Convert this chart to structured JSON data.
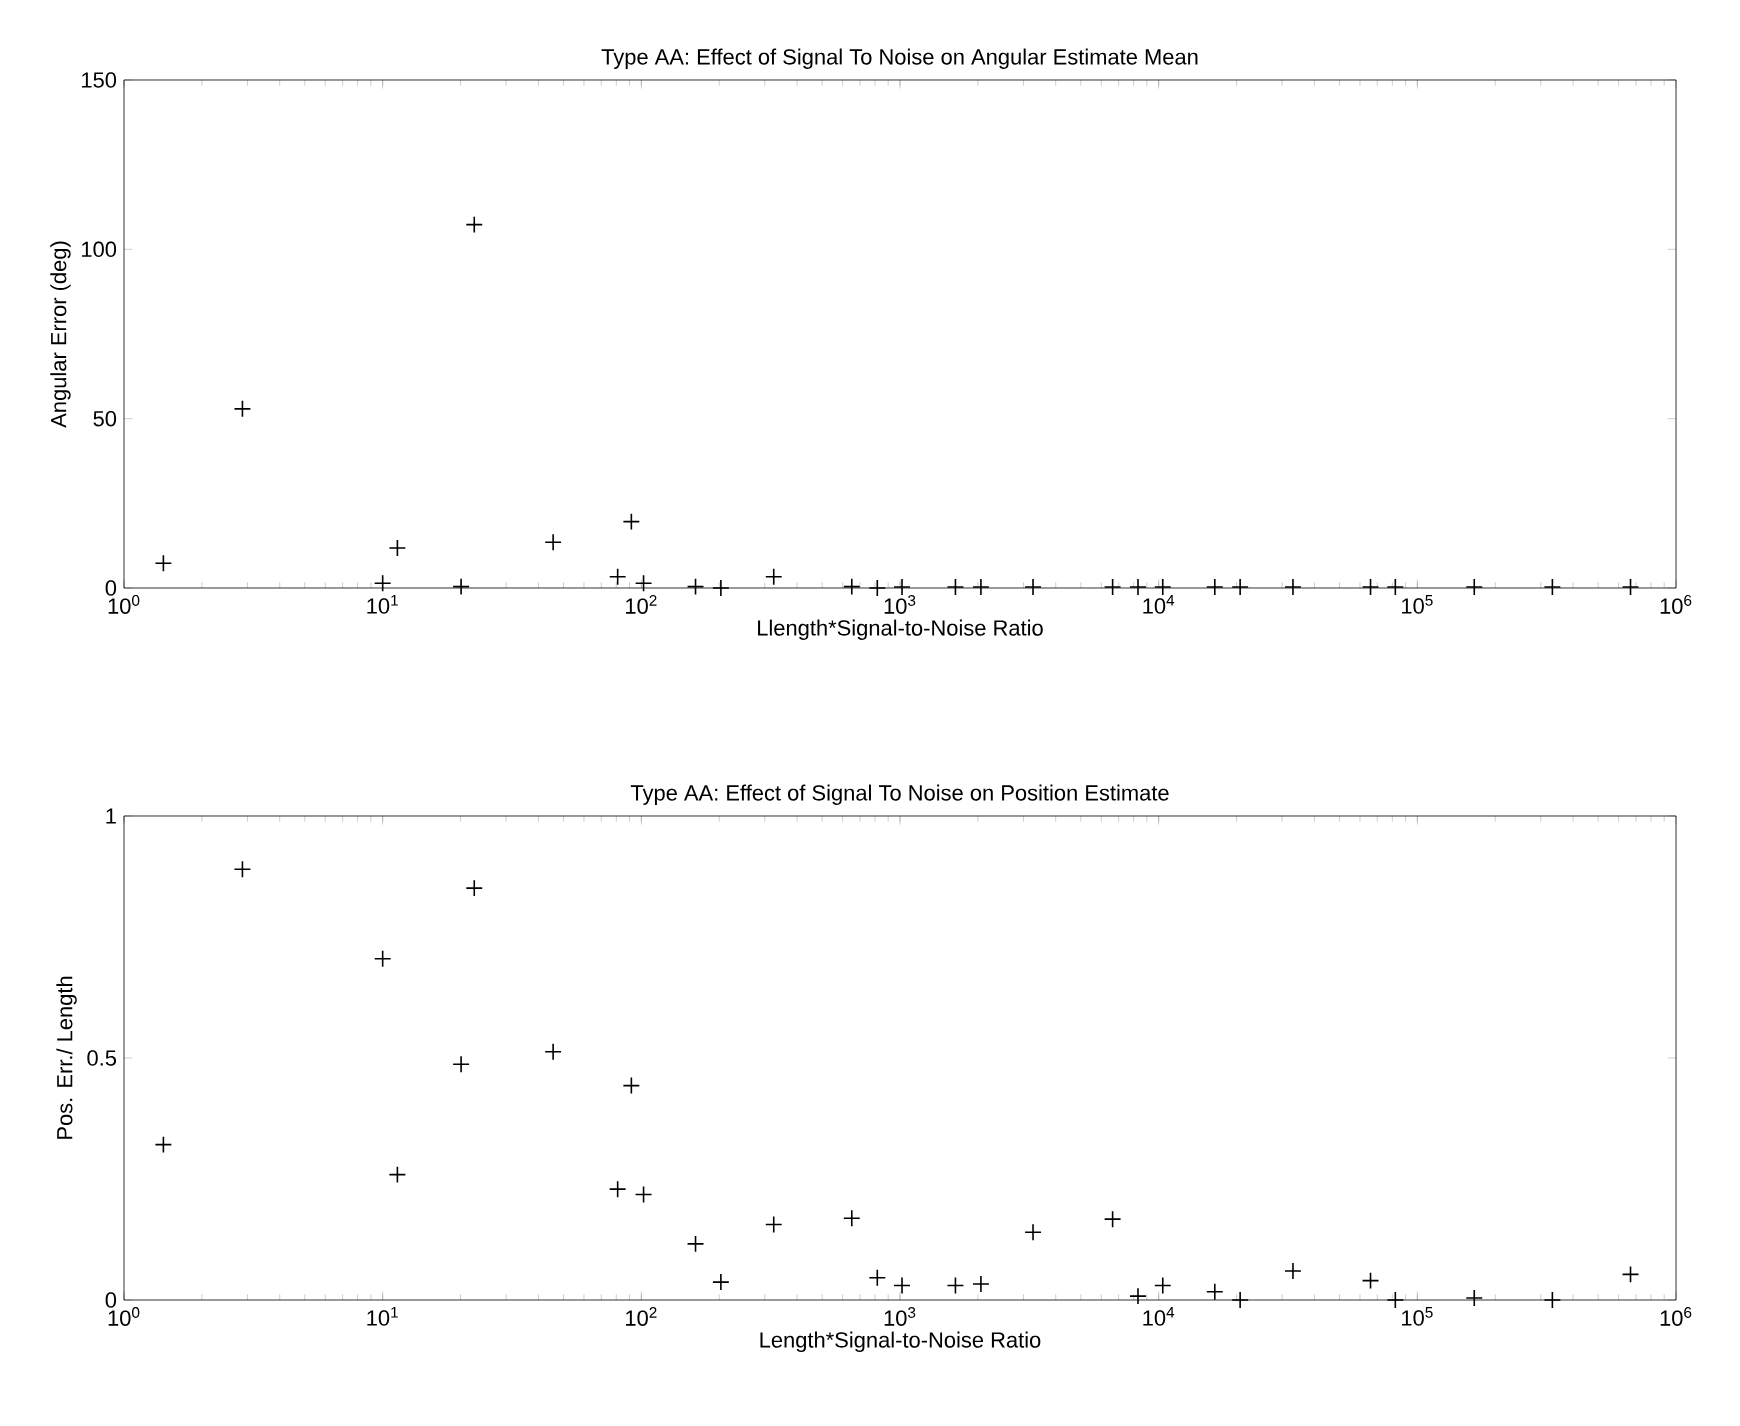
{
  "chart_data": [
    {
      "type": "scatter",
      "title": "Type AA: Effect of Signal To Noise on Angular Estimate Mean",
      "xlabel": "Llength*Signal-to-Noise Ratio",
      "ylabel": "Angular Error (deg)",
      "log": "x",
      "marker": "cross",
      "color": "#000000",
      "x": [
        1.42,
        2.87,
        10,
        11.4,
        20.1,
        22.6,
        45.6,
        81,
        91.5,
        102,
        162,
        203,
        325,
        651,
        817,
        1018,
        1638,
        2055,
        3268,
        6637,
        8318,
        10370,
        16480,
        20650,
        33050,
        65920,
        82200,
        166000,
        332700,
        667000
      ],
      "values": [
        7.3,
        52.9,
        1.4,
        11.8,
        0.4,
        107.3,
        13.5,
        3.3,
        19.6,
        1.4,
        0.4,
        0,
        3.3,
        0.4,
        0,
        0.3,
        0.3,
        0.3,
        0.3,
        0.3,
        0.3,
        0.3,
        0.3,
        0.3,
        0.3,
        0.3,
        0.3,
        0.3,
        0.3,
        0.3
      ],
      "xlim": [
        1,
        1000000
      ],
      "xticks": [
        {
          "value": 1,
          "label": "10$^{0}$"
        },
        {
          "value": 10,
          "label": "10$^{1}$"
        },
        {
          "value": 100,
          "label": "10$^{2}$"
        },
        {
          "value": 1000,
          "label": "10$^{3}$"
        },
        {
          "value": 10000,
          "label": "10$^{4}$"
        },
        {
          "value": 100000,
          "label": "10$^{5}$"
        },
        {
          "value": 1000000,
          "label": "10$^{6}$"
        }
      ],
      "ylim": [
        0,
        150
      ],
      "yticks": [
        0,
        50,
        100,
        150
      ]
    },
    {
      "type": "scatter",
      "title": "Type AA: Effect of Signal To Noise on Position Estimate",
      "xlabel": "Length*Signal-to-Noise Ratio",
      "ylabel": "Pos. Err./ Length",
      "log": "x",
      "marker": "cross",
      "color": "#000000",
      "x": [
        1.42,
        2.87,
        10,
        11.4,
        20.1,
        22.6,
        45.6,
        81,
        91.5,
        102,
        162,
        203,
        325,
        651,
        817,
        1018,
        1638,
        2055,
        3268,
        6637,
        8318,
        10370,
        16480,
        20650,
        33050,
        65920,
        82200,
        166000,
        332700,
        667000
      ],
      "values": [
        0.321,
        0.89,
        0.705,
        0.259,
        0.487,
        0.851,
        0.513,
        0.229,
        0.443,
        0.218,
        0.116,
        0.037,
        0.156,
        0.169,
        0.046,
        0.03,
        0.03,
        0.033,
        0.14,
        0.167,
        0.008,
        0.03,
        0.017,
        0,
        0.06,
        0.04,
        0,
        0.004,
        0,
        0.053
      ],
      "xlim": [
        1,
        1000000
      ],
      "xticks": [
        {
          "value": 1,
          "label": "10$^{0}$"
        },
        {
          "value": 10,
          "label": "10$^{1}$"
        },
        {
          "value": 100,
          "label": "10$^{2}$"
        },
        {
          "value": 1000,
          "label": "10$^{3}$"
        },
        {
          "value": 10000,
          "label": "10$^{4}$"
        },
        {
          "value": 100000,
          "label": "10$^{5}$"
        },
        {
          "value": 1000000,
          "label": "10$^{6}$"
        }
      ],
      "ylim": [
        0,
        1
      ],
      "yticks": [
        0,
        {
          "value": 0.5,
          "label": "0.5"
        },
        1
      ]
    }
  ]
}
